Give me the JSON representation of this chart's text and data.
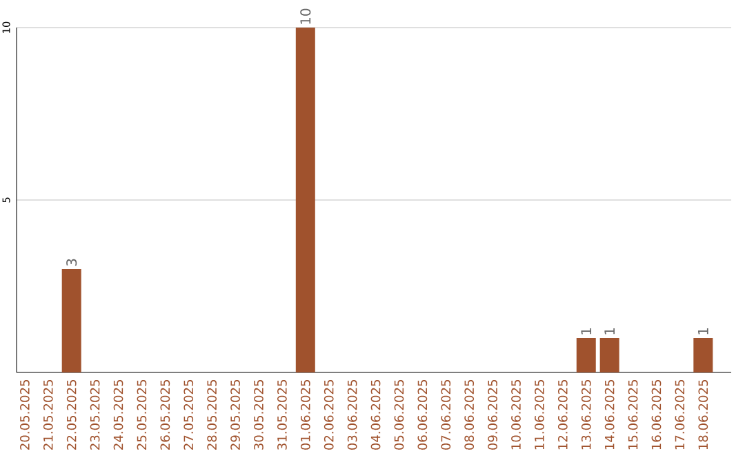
{
  "chart_data": {
    "type": "bar",
    "categories": [
      "20.05.2025",
      "21.05.2025",
      "22.05.2025",
      "23.05.2025",
      "24.05.2025",
      "25.05.2025",
      "26.05.2025",
      "27.05.2025",
      "28.05.2025",
      "29.05.2025",
      "30.05.2025",
      "31.05.2025",
      "01.06.2025",
      "02.06.2025",
      "03.06.2025",
      "04.06.2025",
      "05.06.2025",
      "06.06.2025",
      "07.06.2025",
      "08.06.2025",
      "09.06.2025",
      "10.06.2025",
      "11.06.2025",
      "12.06.2025",
      "13.06.2025",
      "14.06.2025",
      "15.06.2025",
      "16.06.2025",
      "17.06.2025",
      "18.06.2025"
    ],
    "values": [
      0,
      0,
      3,
      0,
      0,
      0,
      0,
      0,
      0,
      0,
      0,
      0,
      10,
      0,
      0,
      0,
      0,
      0,
      0,
      0,
      0,
      0,
      0,
      0,
      1,
      1,
      0,
      0,
      0,
      1
    ],
    "value_labels": [
      null,
      null,
      "3",
      null,
      null,
      null,
      null,
      null,
      null,
      null,
      null,
      null,
      "10",
      null,
      null,
      null,
      null,
      null,
      null,
      null,
      null,
      null,
      null,
      null,
      "1",
      "1",
      null,
      null,
      null,
      "1"
    ],
    "color": "#a0522d",
    "ylim": [
      0,
      10
    ],
    "yticks": [
      5,
      10
    ],
    "grid": "y"
  }
}
